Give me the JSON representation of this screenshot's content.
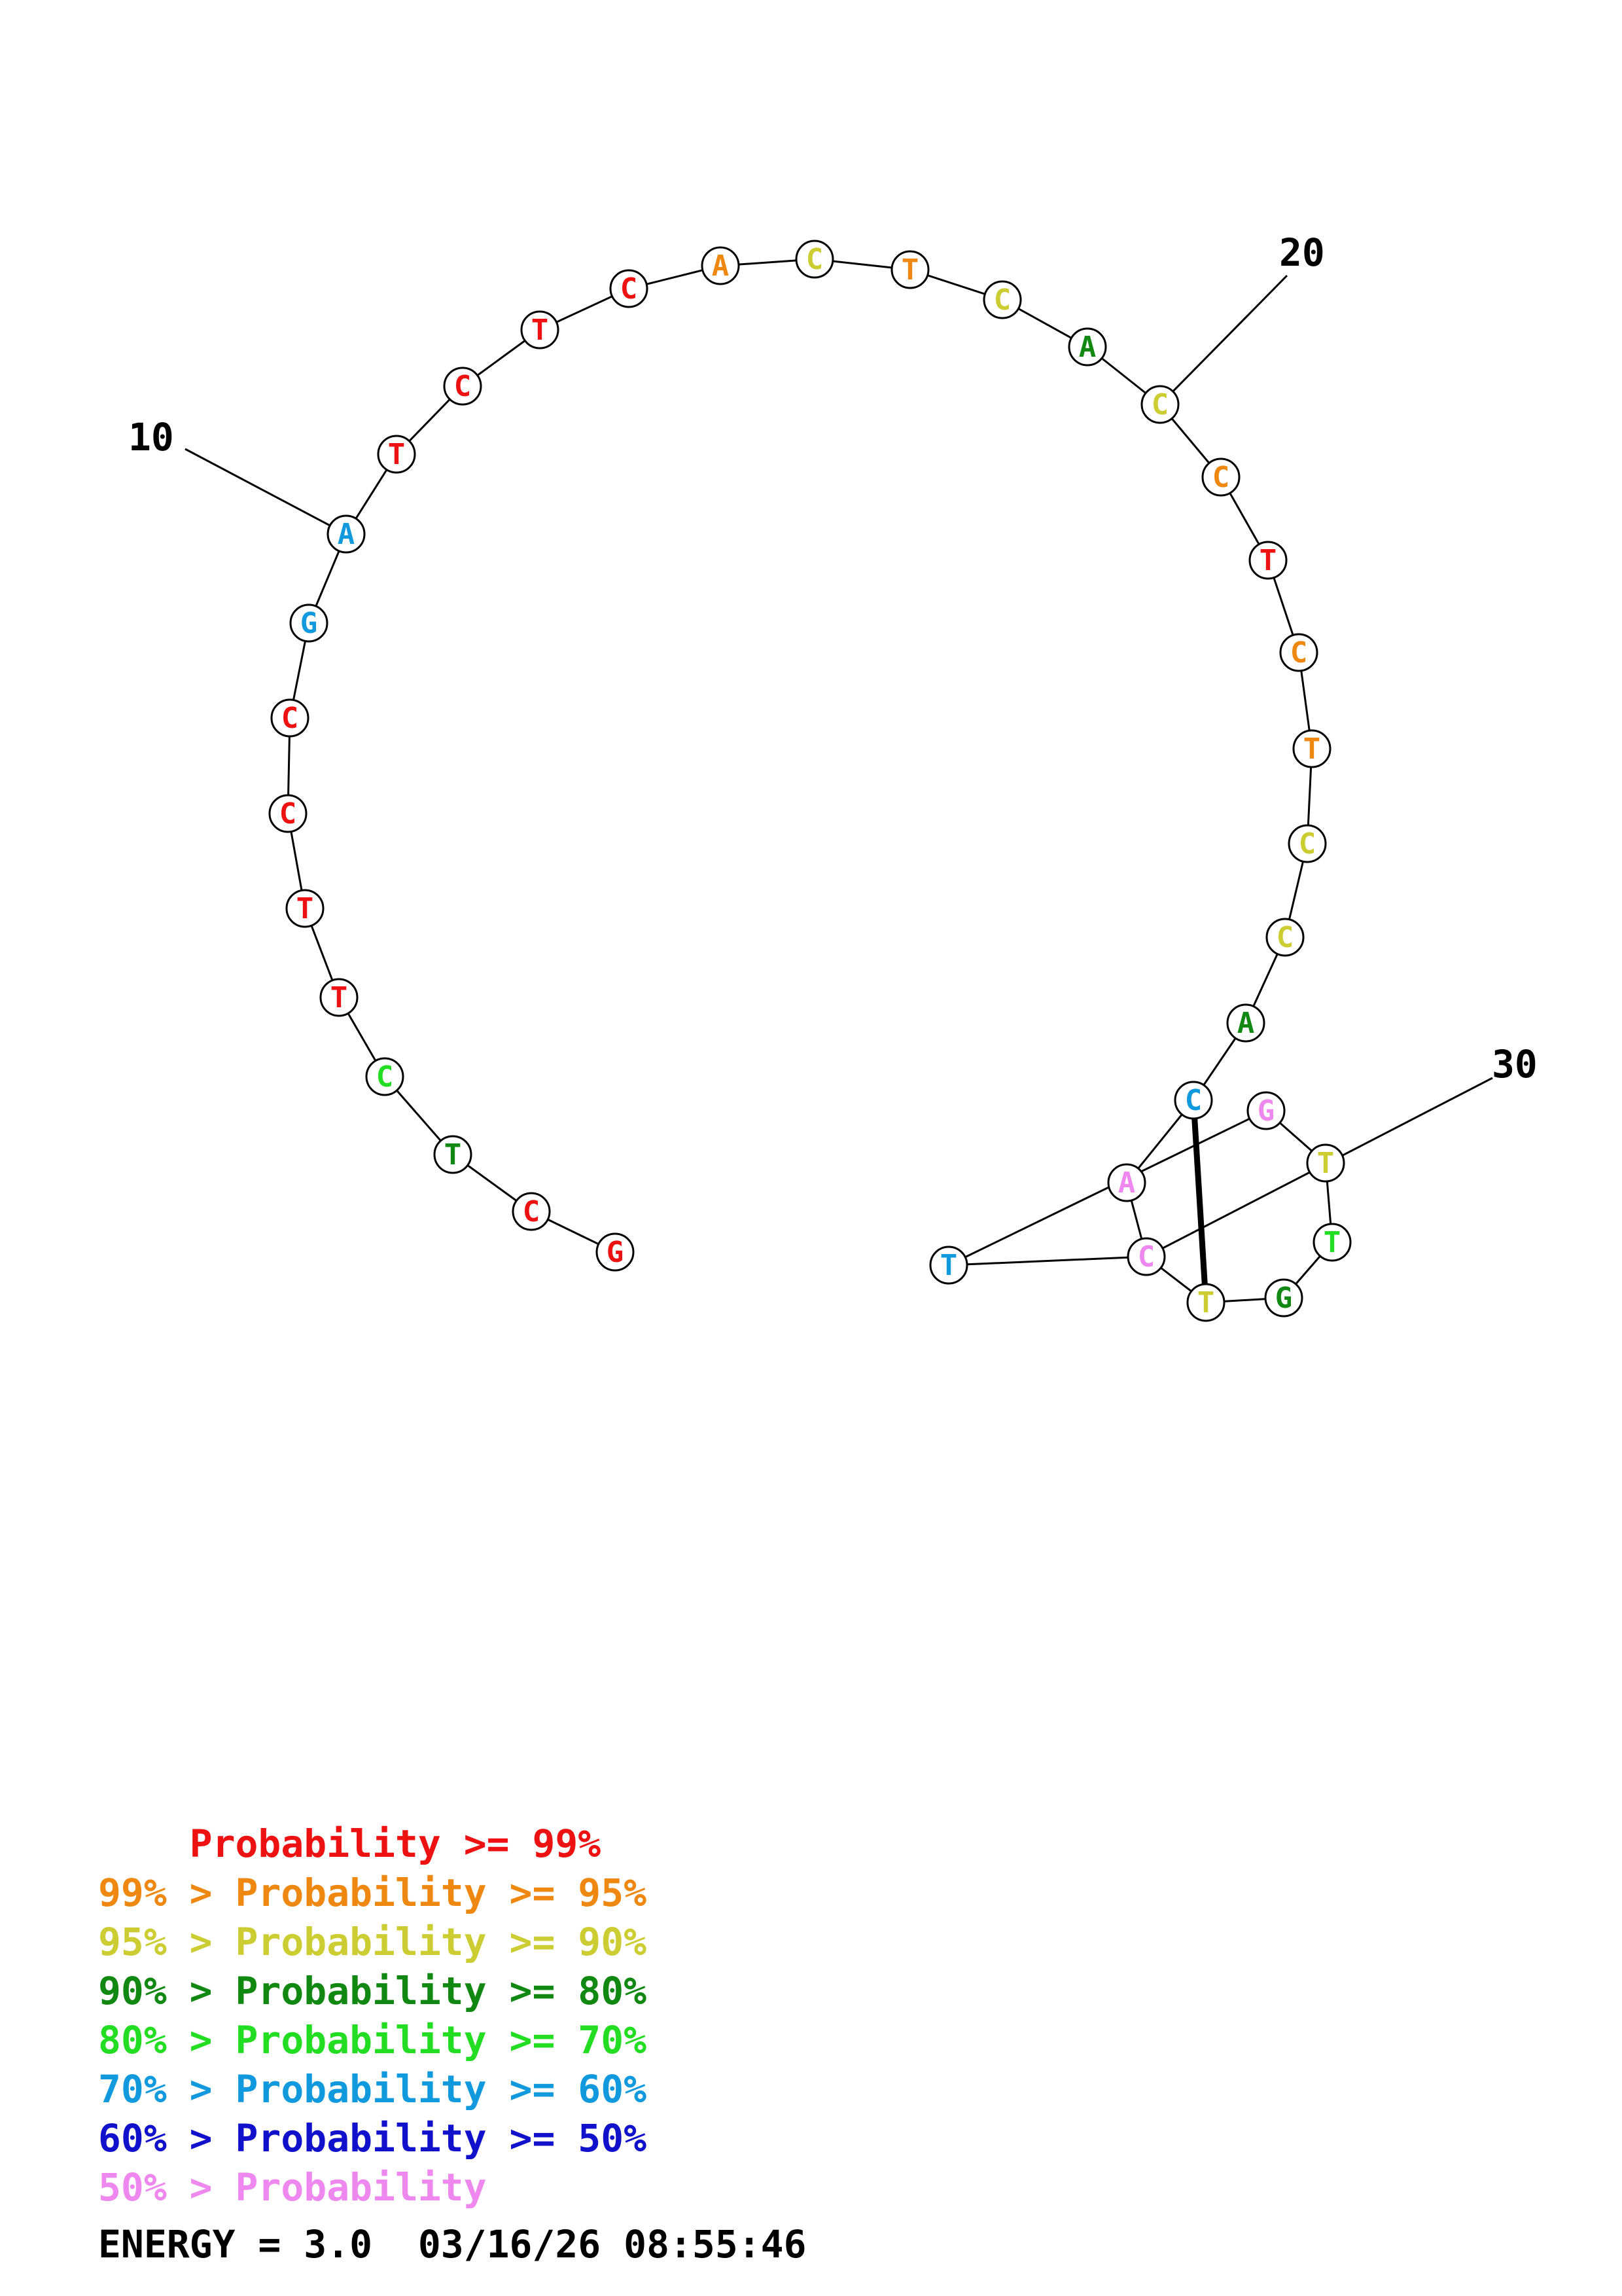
{
  "sequence": [
    "G",
    "C",
    "T",
    "C",
    "T",
    "T",
    "C",
    "C",
    "G",
    "A",
    "T",
    "C",
    "T",
    "C",
    "A",
    "C",
    "T",
    "C",
    "A",
    "C",
    "C",
    "T",
    "C",
    "T",
    "C",
    "C",
    "A",
    "C",
    "A",
    "C",
    "T",
    "G",
    "T",
    "T",
    "G",
    "T"
  ],
  "probability_bins": [
    "p99",
    "p95",
    "p90",
    "p80",
    "p70",
    "p60",
    "p50",
    "plow",
    "p95",
    "p90",
    "p95",
    "p80",
    "p90",
    "p95",
    "p99",
    "p95",
    "p90",
    "p90",
    "p80",
    "p60",
    "plow",
    "plow",
    "p90",
    "p80",
    "p70",
    "p90",
    "plow",
    "plow",
    "p60"
  ],
  "base_bins": [
    "p99",
    "p99",
    "p80",
    "p70",
    "p99",
    "p99",
    "p99",
    "p99",
    "p60",
    "p60",
    "p99",
    "p99",
    "p99",
    "p99",
    "p95",
    "p90",
    "p95",
    "p90",
    "p80",
    "p90",
    "p95",
    "p99",
    "p95",
    "p95",
    "p90",
    "p90",
    "p80",
    "p60",
    "plow",
    "plow",
    "p90",
    "p80",
    "p70",
    "p90",
    "plow",
    "p60"
  ],
  "pairs": [
    [
      28,
      31
    ]
  ],
  "tick_labels": [
    {
      "index": 10,
      "text": "10"
    },
    {
      "index": 20,
      "text": "20"
    },
    {
      "index": 30,
      "text": "30"
    }
  ],
  "colors": {
    "p99": "#ee1111",
    "p95": "#ee8811",
    "p90": "#cccc33",
    "p80": "#118811",
    "p70": "#22dd22",
    "p60": "#1199dd",
    "p50": "#1111cc",
    "plow": "#ee88ee"
  },
  "legend": [
    {
      "bin": "p99",
      "text": "    Probability >= 99%"
    },
    {
      "bin": "p95",
      "text": "99% > Probability >= 95%"
    },
    {
      "bin": "p90",
      "text": "95% > Probability >= 90%"
    },
    {
      "bin": "p80",
      "text": "90% > Probability >= 80%"
    },
    {
      "bin": "p70",
      "text": "80% > Probability >= 70%"
    },
    {
      "bin": "p60",
      "text": "70% > Probability >= 60%"
    },
    {
      "bin": "p50",
      "text": "60% > Probability >= 50%"
    },
    {
      "bin": "plow",
      "text": "50% > Probability"
    }
  ],
  "footer": {
    "energy": "ENERGY = 3.0",
    "timestamp": "03/16/26 08:55:46"
  }
}
